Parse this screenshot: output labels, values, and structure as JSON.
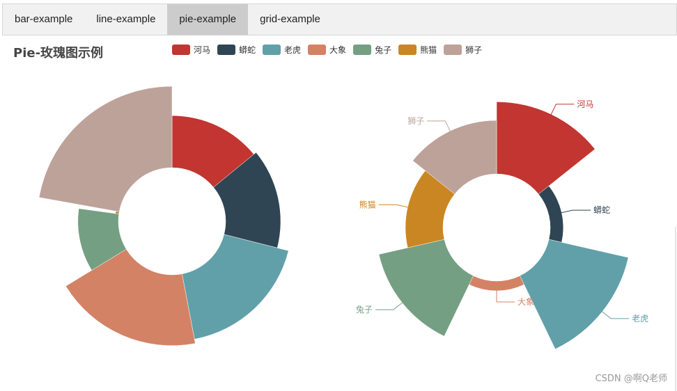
{
  "tabs": [
    {
      "label": "bar-example",
      "active": false
    },
    {
      "label": "line-example",
      "active": false
    },
    {
      "label": "pie-example",
      "active": true
    },
    {
      "label": "grid-example",
      "active": false
    }
  ],
  "watermark": "CSDN @啊Q老师",
  "chart_data": {
    "type": "pie",
    "subtype": "rose",
    "title": "Pie-玫瑰图示例",
    "legend_position": "top",
    "categories": [
      "河马",
      "蟒蛇",
      "老虎",
      "大象",
      "兔子",
      "熊猫",
      "狮子"
    ],
    "colors": [
      "#c23531",
      "#2f4554",
      "#61a0a8",
      "#d48265",
      "#749f83",
      "#ca8622",
      "#bda29a"
    ],
    "charts": [
      {
        "rose_type": "radius",
        "values": [
          106,
          112,
          136,
          145,
          82,
          5,
          167
        ],
        "labels_shown": false
      },
      {
        "rose_type": "area",
        "values": [
          102,
          32,
          113,
          28,
          96,
          61,
          80
        ],
        "labels_shown": true
      }
    ]
  }
}
